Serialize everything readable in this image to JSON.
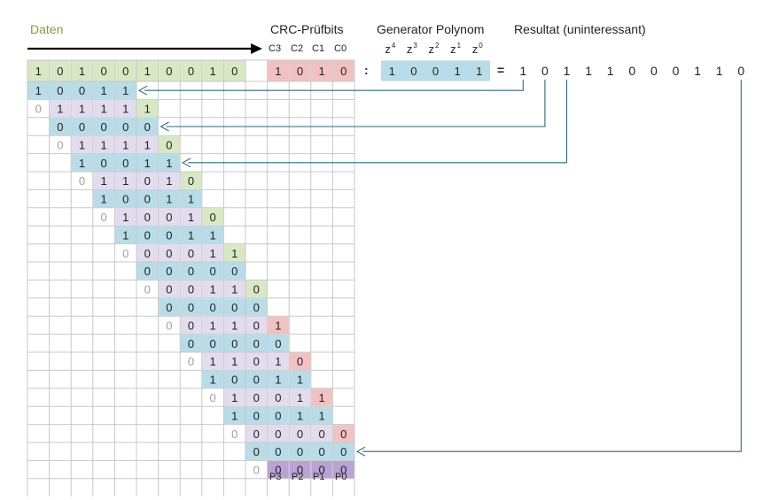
{
  "labels": {
    "daten": "Daten",
    "crc": "CRC-Prüfbits",
    "generator": "Generator Polynom",
    "resultat": "Resultat (uninteressant)",
    "crc_cols": [
      "C3",
      "C2",
      "C1",
      "C0"
    ],
    "p_cols": [
      "P3",
      "P2",
      "P1",
      "P0"
    ],
    "div_sign": ":",
    "eq_sign": "="
  },
  "generator_terms": [
    {
      "base": "z",
      "exp": "4"
    },
    {
      "base": "z",
      "exp": "3"
    },
    {
      "base": "z",
      "exp": "2"
    },
    {
      "base": "z",
      "exp": "1"
    },
    {
      "base": "z",
      "exp": "0"
    }
  ],
  "data_bits": [
    "1",
    "0",
    "1",
    "0",
    "0",
    "1",
    "0",
    "0",
    "1",
    "0"
  ],
  "crc_bits": [
    "1",
    "0",
    "1",
    "0"
  ],
  "generator_bits": [
    "1",
    "0",
    "0",
    "1",
    "1"
  ],
  "result_bits": [
    "1",
    "0",
    "1",
    "1",
    "1",
    "0",
    "0",
    "0",
    "1",
    "1",
    "0"
  ],
  "colors": {
    "data_green": "#d9e8c4",
    "crc_red": "#f2c2c2",
    "generator_blue": "#b8dce8",
    "dividend_lavender": "#e3dcee",
    "final_purple": "#b9a3d4",
    "grid": "#c8c8c8",
    "daten_text": "#7ba23f",
    "arrow": "#2e6b7a",
    "grey_digit": "#a0a0a0"
  },
  "steps": [
    {
      "gen": "10011",
      "rem": "01111",
      "down": "1",
      "down_color": "green"
    },
    {
      "gen": "00000",
      "rem": "01111",
      "down": "0",
      "down_color": "green"
    },
    {
      "gen": "10011",
      "rem": "01101",
      "down": "0",
      "down_color": "green"
    },
    {
      "gen": "10011",
      "rem": "01001",
      "down": "0",
      "down_color": "green"
    },
    {
      "gen": "10011",
      "rem": "00001",
      "down": "1",
      "down_color": "green"
    },
    {
      "gen": "00000",
      "rem": "00011",
      "down": "0",
      "down_color": "green"
    },
    {
      "gen": "00000",
      "rem": "00110",
      "down": "1",
      "down_color": "red"
    },
    {
      "gen": "00000",
      "rem": "01101",
      "down": "0",
      "down_color": "red"
    },
    {
      "gen": "10011",
      "rem": "01001",
      "down": "1",
      "down_color": "red"
    },
    {
      "gen": "10011",
      "rem": "00000",
      "down": "0",
      "down_color": "red"
    },
    {
      "gen": "00000",
      "rem": "00000",
      "down": "",
      "down_color": "none"
    }
  ],
  "arrow_links": [
    0,
    1,
    2,
    10
  ]
}
